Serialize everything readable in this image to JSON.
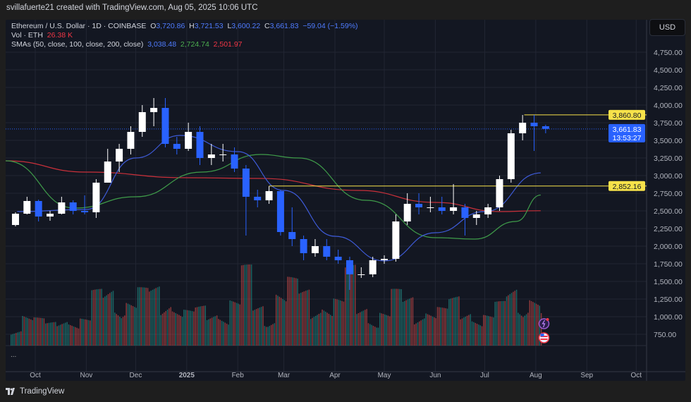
{
  "caption": "svillafuerte21 created with TradingView.com, Aug 05, 2025 10:06 UTC",
  "legend": {
    "symbol": "Ethereum / U.S. Dollar · 1D · COINBASE",
    "o_label": "O",
    "o": "3,720.86",
    "h_label": "H",
    "h": "3,721.53",
    "l_label": "L",
    "l": "3,600.22",
    "c_label": "C",
    "c": "3,661.83",
    "change": "−59.04 (−1.59%)",
    "vol_label": "Vol · ETH",
    "vol": "26.38 K",
    "sma_label": "SMAs (50, close, 100, close, 200, close)",
    "sma50": "3,038.48",
    "sma100": "2,724.74",
    "sma200": "2,501.97"
  },
  "currency_button": "USD",
  "more_indicator": "...",
  "brand": "TradingView",
  "colors": {
    "up": "#ffffff",
    "down": "#2962ff",
    "vol_up": "#26a69a",
    "vol_down": "#ef5350",
    "sma50": "#3e5bd8",
    "sma100": "#3f9c4a",
    "sma200": "#c9303a",
    "level": "#f7e24a",
    "last_price": "#2962ff"
  },
  "chart_data": {
    "type": "candlestick",
    "yaxis_ticks": [
      "750.00",
      "1,000.00",
      "1,250.00",
      "1,500.00",
      "1,750.00",
      "2,000.00",
      "2,250.00",
      "2,500.00",
      "2,750.00",
      "3,000.00",
      "3,250.00",
      "3,500.00",
      "3,750.00",
      "4,000.00",
      "4,250.00",
      "4,500.00",
      "4,750.00"
    ],
    "ylim": [
      600,
      5000
    ],
    "xaxis_ticks": [
      {
        "label": "Oct",
        "date": "2024-10-01"
      },
      {
        "label": "Nov",
        "date": "2024-11-01"
      },
      {
        "label": "Dec",
        "date": "2024-12-01"
      },
      {
        "label": "2025",
        "date": "2025-01-01",
        "bold": true
      },
      {
        "label": "Feb",
        "date": "2025-02-01"
      },
      {
        "label": "Mar",
        "date": "2025-03-01"
      },
      {
        "label": "Apr",
        "date": "2025-04-01"
      },
      {
        "label": "May",
        "date": "2025-05-01"
      },
      {
        "label": "Jun",
        "date": "2025-06-01"
      },
      {
        "label": "Jul",
        "date": "2025-07-01"
      },
      {
        "label": "Aug",
        "date": "2025-08-01"
      },
      {
        "label": "Sep",
        "date": "2025-09-01"
      },
      {
        "label": "Oct",
        "date": "2025-10-01"
      }
    ],
    "candles_weekly": [
      [
        "2024-09-16",
        2300,
        2480,
        2280,
        2460
      ],
      [
        "2024-09-23",
        2460,
        2700,
        2450,
        2640
      ],
      [
        "2024-09-30",
        2640,
        2660,
        2350,
        2420
      ],
      [
        "2024-10-07",
        2420,
        2500,
        2360,
        2460
      ],
      [
        "2024-10-14",
        2460,
        2700,
        2450,
        2620
      ],
      [
        "2024-10-21",
        2620,
        2650,
        2450,
        2500
      ],
      [
        "2024-10-28",
        2500,
        2720,
        2450,
        2480
      ],
      [
        "2024-11-04",
        2480,
        2950,
        2400,
        2900
      ],
      [
        "2024-11-11",
        2900,
        3380,
        2900,
        3200
      ],
      [
        "2024-11-18",
        3200,
        3450,
        3050,
        3380
      ],
      [
        "2024-11-25",
        3380,
        3700,
        3300,
        3620
      ],
      [
        "2024-12-02",
        3620,
        4000,
        3550,
        3900
      ],
      [
        "2024-12-09",
        3900,
        4100,
        3700,
        3960
      ],
      [
        "2024-12-16",
        3960,
        4100,
        3400,
        3450
      ],
      [
        "2024-12-23",
        3450,
        3550,
        3300,
        3380
      ],
      [
        "2024-12-30",
        3380,
        3750,
        3350,
        3620
      ],
      [
        "2025-01-06",
        3620,
        3700,
        3150,
        3250
      ],
      [
        "2025-01-13",
        3250,
        3450,
        3150,
        3300
      ],
      [
        "2025-01-20",
        3300,
        3450,
        3200,
        3300
      ],
      [
        "2025-01-27",
        3300,
        3400,
        3050,
        3100
      ],
      [
        "2025-02-03",
        3100,
        3150,
        2150,
        2700
      ],
      [
        "2025-02-10",
        2700,
        2800,
        2550,
        2650
      ],
      [
        "2025-02-17",
        2650,
        2850,
        2600,
        2780
      ],
      [
        "2025-02-24",
        2780,
        2800,
        2150,
        2200
      ],
      [
        "2025-03-03",
        2200,
        2550,
        2000,
        2100
      ],
      [
        "2025-03-10",
        2100,
        2150,
        1800,
        1900
      ],
      [
        "2025-03-17",
        1900,
        2100,
        1850,
        2000
      ],
      [
        "2025-03-24",
        2000,
        2100,
        1800,
        1850
      ],
      [
        "2025-03-31",
        1850,
        1950,
        1750,
        1800
      ],
      [
        "2025-04-07",
        1800,
        1850,
        1380,
        1600
      ],
      [
        "2025-04-14",
        1600,
        1700,
        1550,
        1600
      ],
      [
        "2025-04-21",
        1600,
        1850,
        1560,
        1800
      ],
      [
        "2025-04-28",
        1800,
        1870,
        1750,
        1820
      ],
      [
        "2025-05-05",
        1820,
        2450,
        1780,
        2350
      ],
      [
        "2025-05-12",
        2350,
        2750,
        2300,
        2600
      ],
      [
        "2025-05-19",
        2600,
        2750,
        2450,
        2550
      ],
      [
        "2025-05-26",
        2550,
        2700,
        2480,
        2550
      ],
      [
        "2025-06-02",
        2550,
        2700,
        2450,
        2500
      ],
      [
        "2025-06-09",
        2500,
        2880,
        2450,
        2550
      ],
      [
        "2025-06-16",
        2550,
        2600,
        2150,
        2400
      ],
      [
        "2025-06-23",
        2400,
        2500,
        2300,
        2450
      ],
      [
        "2025-06-30",
        2450,
        2600,
        2400,
        2550
      ],
      [
        "2025-07-07",
        2550,
        3000,
        2500,
        2950
      ],
      [
        "2025-07-14",
        2950,
        3650,
        2900,
        3600
      ],
      [
        "2025-07-21",
        3600,
        3860,
        3500,
        3750
      ],
      [
        "2025-07-28",
        3750,
        3860,
        3350,
        3700
      ],
      [
        "2025-08-04",
        3700,
        3722,
        3600,
        3662
      ]
    ],
    "volume_weekly_relative": [
      30,
      45,
      35,
      30,
      40,
      38,
      35,
      70,
      80,
      75,
      60,
      72,
      78,
      74,
      55,
      45,
      50,
      48,
      52,
      60,
      100,
      55,
      50,
      75,
      85,
      72,
      58,
      62,
      60,
      100,
      55,
      48,
      45,
      70,
      65,
      55,
      50,
      48,
      62,
      52,
      45,
      40,
      55,
      80,
      78,
      65,
      40
    ],
    "sma50": [
      [
        "2024-09-20",
        2490
      ],
      [
        "2024-11-01",
        2520
      ],
      [
        "2024-12-01",
        3250
      ],
      [
        "2024-12-28",
        3570
      ],
      [
        "2025-02-01",
        3340
      ],
      [
        "2025-03-01",
        2790
      ],
      [
        "2025-04-01",
        2140
      ],
      [
        "2025-05-01",
        1790
      ],
      [
        "2025-06-01",
        2190
      ],
      [
        "2025-07-01",
        2490
      ],
      [
        "2025-08-04",
        3038.48
      ]
    ],
    "sma100": [
      [
        "2024-09-13",
        3210
      ],
      [
        "2024-10-25",
        2540
      ],
      [
        "2024-12-01",
        2700
      ],
      [
        "2025-01-10",
        3050
      ],
      [
        "2025-02-15",
        3300
      ],
      [
        "2025-03-10",
        3250
      ],
      [
        "2025-04-20",
        2650
      ],
      [
        "2025-06-01",
        2120
      ],
      [
        "2025-06-25",
        2100
      ],
      [
        "2025-07-20",
        2350
      ],
      [
        "2025-08-04",
        2724.74
      ]
    ],
    "sma200": [
      [
        "2024-09-13",
        3210
      ],
      [
        "2024-11-01",
        3050
      ],
      [
        "2025-01-01",
        2970
      ],
      [
        "2025-02-15",
        2960
      ],
      [
        "2025-04-15",
        2790
      ],
      [
        "2025-06-01",
        2620
      ],
      [
        "2025-07-10",
        2490
      ],
      [
        "2025-08-04",
        2501.97
      ]
    ],
    "levels": [
      {
        "price": 3860.8,
        "label": "3,860.80",
        "from": "2025-07-25"
      },
      {
        "price": 2852.16,
        "label": "2,852.16",
        "from": "2025-02-20"
      }
    ],
    "last_price": {
      "price": 3661.83,
      "label": "3,661.83",
      "countdown": "13:53:27"
    }
  }
}
